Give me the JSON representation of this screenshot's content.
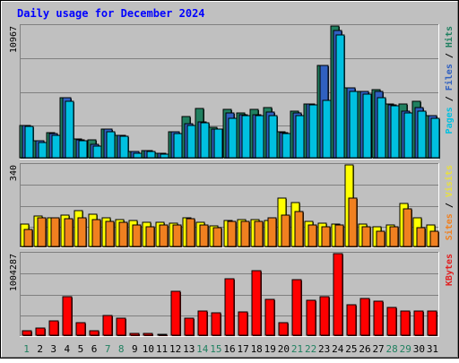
{
  "chart_data": [
    {
      "type": "bar",
      "title": "Daily usage for December 2024",
      "panel": "top",
      "categories": [
        "1",
        "2",
        "3",
        "4",
        "5",
        "6",
        "7",
        "8",
        "9",
        "10",
        "11",
        "12",
        "13",
        "14",
        "15",
        "16",
        "17",
        "18",
        "19",
        "20",
        "21",
        "22",
        "23",
        "24",
        "25",
        "26",
        "27",
        "28",
        "29",
        "30",
        "31"
      ],
      "y_max_label": "10967",
      "ylim": [
        0,
        10967
      ],
      "right_label_parts": [
        {
          "text": "Pages",
          "color": "#00c0e0"
        },
        {
          "text": " / ",
          "color": "#000000"
        },
        {
          "text": "Files",
          "color": "#3060c0"
        },
        {
          "text": " / ",
          "color": "#000000"
        },
        {
          "text": "Hits",
          "color": "#208060"
        }
      ],
      "series": [
        {
          "name": "Hits",
          "color": "#208060",
          "values": [
            2700,
            1400,
            2100,
            5000,
            1600,
            1500,
            2400,
            1900,
            500,
            600,
            400,
            2200,
            3400,
            4100,
            2500,
            4000,
            3700,
            4000,
            4200,
            2200,
            3900,
            4500,
            7700,
            10967,
            5800,
            5500,
            5700,
            4500,
            4500,
            4700,
            3500
          ]
        },
        {
          "name": "Files",
          "color": "#3060c0",
          "values": [
            2700,
            1400,
            2000,
            5000,
            1500,
            1100,
            2400,
            1900,
            500,
            600,
            400,
            2200,
            2800,
            3000,
            2400,
            3700,
            3600,
            3600,
            3800,
            2100,
            3700,
            4500,
            7700,
            10600,
            5800,
            5500,
            5500,
            4400,
            3900,
            4200,
            3500
          ]
        },
        {
          "name": "Pages",
          "color": "#00c0e0",
          "values": [
            2600,
            1300,
            1900,
            4700,
            1400,
            1000,
            2200,
            1800,
            400,
            500,
            300,
            2000,
            2700,
            2900,
            2400,
            3300,
            3500,
            3500,
            3500,
            2000,
            3500,
            4400,
            4800,
            10200,
            5500,
            5300,
            5000,
            4300,
            3700,
            3900,
            3300
          ]
        }
      ]
    },
    {
      "type": "bar",
      "panel": "middle",
      "categories": [
        "1",
        "2",
        "3",
        "4",
        "5",
        "6",
        "7",
        "8",
        "9",
        "10",
        "11",
        "12",
        "13",
        "14",
        "15",
        "16",
        "17",
        "18",
        "19",
        "20",
        "21",
        "22",
        "23",
        "24",
        "25",
        "26",
        "27",
        "28",
        "29",
        "30",
        "31"
      ],
      "y_max_label": "340",
      "ylim": [
        0,
        340
      ],
      "right_label_parts": [
        {
          "text": "Sites",
          "color": "#f08020"
        },
        {
          "text": " / ",
          "color": "#000000"
        },
        {
          "text": "Visits",
          "color": "#e8e040"
        }
      ],
      "series": [
        {
          "name": "Visits",
          "color": "#ffff00",
          "values": [
            93,
            128,
            119,
            131,
            150,
            136,
            120,
            112,
            109,
            100,
            100,
            97,
            121,
            100,
            86,
            110,
            113,
            111,
            109,
            202,
            182,
            103,
            96,
            95,
            340,
            94,
            84,
            91,
            180,
            120,
            89
          ]
        },
        {
          "name": "Sites",
          "color": "#f08020",
          "values": [
            70,
            118,
            118,
            117,
            120,
            112,
            105,
            100,
            88,
            83,
            90,
            90,
            115,
            90,
            80,
            103,
            103,
            103,
            118,
            130,
            145,
            90,
            84,
            90,
            202,
            83,
            65,
            83,
            157,
            78,
            65
          ]
        }
      ]
    },
    {
      "type": "bar",
      "panel": "bottom",
      "categories": [
        "1",
        "2",
        "3",
        "4",
        "5",
        "6",
        "7",
        "8",
        "9",
        "10",
        "11",
        "12",
        "13",
        "14",
        "15",
        "16",
        "17",
        "18",
        "19",
        "20",
        "21",
        "22",
        "23",
        "24",
        "25",
        "26",
        "27",
        "28",
        "29",
        "30",
        "31"
      ],
      "y_max_label": "1004287",
      "ylim": [
        0,
        1004287
      ],
      "right_label_parts": [
        {
          "text": "KBytes",
          "color": "#e02020"
        }
      ],
      "series": [
        {
          "name": "KBytes",
          "color": "#ff0000",
          "values": [
            60000,
            85000,
            175000,
            480000,
            155000,
            50000,
            240000,
            210000,
            25000,
            25000,
            15000,
            540000,
            215000,
            295000,
            275000,
            700000,
            290000,
            795000,
            445000,
            150000,
            685000,
            430000,
            480000,
            1004287,
            375000,
            455000,
            420000,
            340000,
            295000,
            295000,
            295000
          ]
        }
      ]
    }
  ]
}
